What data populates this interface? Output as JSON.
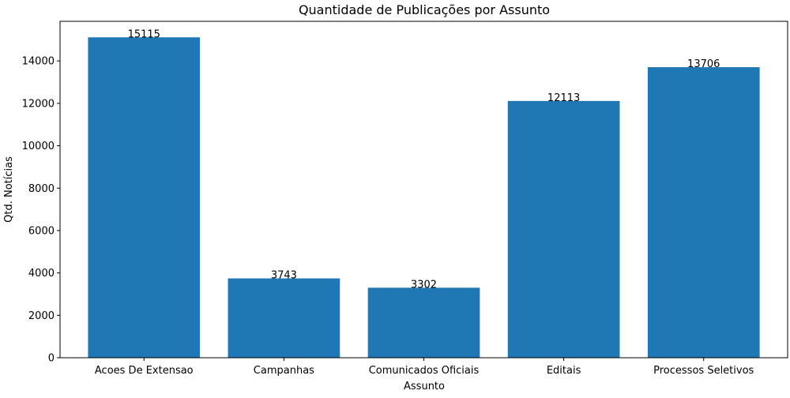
{
  "chart_data": {
    "type": "bar",
    "title": "Quantidade de Publicações por Assunto",
    "xlabel": "Assunto",
    "ylabel": "Qtd. Notícias",
    "categories": [
      "Acoes De Extensao",
      "Campanhas",
      "Comunicados Oficiais",
      "Editais",
      "Processos Seletivos"
    ],
    "values": [
      15115,
      3743,
      3302,
      12113,
      13706
    ],
    "value_labels": [
      "15115",
      "3743",
      "3302",
      "12113",
      "13706"
    ],
    "ylim": [
      0,
      15870
    ],
    "yticks": [
      0,
      2000,
      4000,
      6000,
      8000,
      10000,
      12000,
      14000
    ],
    "ytick_labels": [
      "0",
      "2000",
      "4000",
      "6000",
      "8000",
      "10000",
      "12000",
      "14000"
    ],
    "grid": false,
    "legend": "none",
    "bar_color": "#1f77b4"
  }
}
